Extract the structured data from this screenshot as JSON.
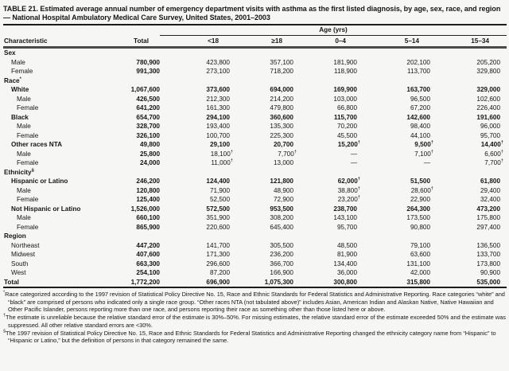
{
  "title": "TABLE 21. Estimated average annual number of emergency department visits with asthma as the first listed diagnosis, by age, sex, race, and region — National Hospital Ambulatory Medical Care Survey, United States, 2001–2003",
  "table": {
    "age_spanner": "Age (yrs)",
    "columns": [
      "Characteristic",
      "Total",
      "<18",
      "≥18",
      "0–4",
      "5–14",
      "15–34"
    ],
    "rows": [
      {
        "label": "Sex",
        "indent": 0,
        "section": true,
        "bold": false,
        "values": []
      },
      {
        "label": "Male",
        "indent": 1,
        "section": false,
        "bold": false,
        "values": [
          "780,900",
          "423,800",
          "357,100",
          "181,900",
          "202,100",
          "205,200"
        ]
      },
      {
        "label": "Female",
        "indent": 1,
        "section": false,
        "bold": false,
        "values": [
          "991,300",
          "273,100",
          "718,200",
          "118,900",
          "113,700",
          "329,800"
        ]
      },
      {
        "label": "Race*",
        "indent": 0,
        "section": true,
        "bold": false,
        "values": []
      },
      {
        "label": "White",
        "indent": 1,
        "section": false,
        "bold": true,
        "values": [
          "1,067,600",
          "373,600",
          "694,000",
          "169,900",
          "163,700",
          "329,000"
        ]
      },
      {
        "label": "Male",
        "indent": 2,
        "section": false,
        "bold": false,
        "values": [
          "426,500",
          "212,300",
          "214,200",
          "103,000",
          "96,500",
          "102,600"
        ]
      },
      {
        "label": "Female",
        "indent": 2,
        "section": false,
        "bold": false,
        "values": [
          "641,200",
          "161,300",
          "479,800",
          "66,800",
          "67,200",
          "226,400"
        ]
      },
      {
        "label": "Black",
        "indent": 1,
        "section": false,
        "bold": true,
        "values": [
          "654,700",
          "294,100",
          "360,600",
          "115,700",
          "142,600",
          "191,600"
        ]
      },
      {
        "label": "Male",
        "indent": 2,
        "section": false,
        "bold": false,
        "values": [
          "328,700",
          "193,400",
          "135,300",
          "70,200",
          "98,400",
          "96,000"
        ]
      },
      {
        "label": "Female",
        "indent": 2,
        "section": false,
        "bold": false,
        "values": [
          "326,100",
          "100,700",
          "225,300",
          "45,500",
          "44,100",
          "95,700"
        ]
      },
      {
        "label": "Other races NTA",
        "indent": 1,
        "section": false,
        "bold": true,
        "values": [
          "49,800",
          "29,100",
          "20,700",
          "15,200†",
          "9,500†",
          "14,400†"
        ]
      },
      {
        "label": "Male",
        "indent": 2,
        "section": false,
        "bold": false,
        "values": [
          "25,800",
          "18,100†",
          "7,700†",
          "—",
          "7,100†",
          "6,600†"
        ]
      },
      {
        "label": "Female",
        "indent": 2,
        "section": false,
        "bold": false,
        "values": [
          "24,000",
          "11,000†",
          "13,000",
          "—",
          "—",
          "7,700†"
        ]
      },
      {
        "label": "Ethnicity§",
        "indent": 0,
        "section": true,
        "bold": false,
        "values": []
      },
      {
        "label": "Hispanic or Latino",
        "indent": 1,
        "section": false,
        "bold": true,
        "values": [
          "246,200",
          "124,400",
          "121,800",
          "62,000†",
          "51,500",
          "61,800"
        ]
      },
      {
        "label": "Male",
        "indent": 2,
        "section": false,
        "bold": false,
        "values": [
          "120,800",
          "71,900",
          "48,900",
          "38,800†",
          "28,600†",
          "29,400"
        ]
      },
      {
        "label": "Female",
        "indent": 2,
        "section": false,
        "bold": false,
        "values": [
          "125,400",
          "52,500",
          "72,900",
          "23,200†",
          "22,900",
          "32,400"
        ]
      },
      {
        "label": "Not Hispanic or Latino",
        "indent": 1,
        "section": false,
        "bold": true,
        "values": [
          "1,526,000",
          "572,500",
          "953,500",
          "238,700",
          "264,300",
          "473,200"
        ]
      },
      {
        "label": "Male",
        "indent": 2,
        "section": false,
        "bold": false,
        "values": [
          "660,100",
          "351,900",
          "308,200",
          "143,100",
          "173,500",
          "175,800"
        ]
      },
      {
        "label": "Female",
        "indent": 2,
        "section": false,
        "bold": false,
        "values": [
          "865,900",
          "220,600",
          "645,400",
          "95,700",
          "90,800",
          "297,400"
        ]
      },
      {
        "label": "Region",
        "indent": 0,
        "section": true,
        "bold": false,
        "values": []
      },
      {
        "label": "Northeast",
        "indent": 1,
        "section": false,
        "bold": false,
        "values": [
          "447,200",
          "141,700",
          "305,500",
          "48,500",
          "79,100",
          "136,500"
        ]
      },
      {
        "label": "Midwest",
        "indent": 1,
        "section": false,
        "bold": false,
        "values": [
          "407,600",
          "171,300",
          "236,200",
          "81,900",
          "63,600",
          "133,700"
        ]
      },
      {
        "label": "South",
        "indent": 1,
        "section": false,
        "bold": false,
        "values": [
          "663,300",
          "296,600",
          "366,700",
          "134,400",
          "131,100",
          "173,800"
        ]
      },
      {
        "label": "West",
        "indent": 1,
        "section": false,
        "bold": false,
        "values": [
          "254,100",
          "87,200",
          "166,900",
          "36,000",
          "42,000",
          "90,900"
        ]
      },
      {
        "label": "Total",
        "indent": 0,
        "section": true,
        "bold": true,
        "values": [
          "1,772,200",
          "696,900",
          "1,075,300",
          "300,800",
          "315,800",
          "535,000"
        ]
      }
    ]
  },
  "footnotes": [
    {
      "marker": "*",
      "text": "Race categorized according to the 1997 revision of Statistical Policy Directive No. 15, Race and Ethnic Standards for Federal Statistics and Administrative Reporting. Race categories “white” and “black” are comprised of persons who indicated only a single race group. “Other races NTA (not tabulated above)” includes Asian, American Indian and Alaskan Native, Native Hawaiian and Other Pacific Islander, persons reporting more than one race, and persons reporting their race as something other than those listed here or above."
    },
    {
      "marker": "†",
      "text": "The estimate is unreliable because the relative standard error of the estimate is 30%–50%. For missing estimates, the relative standard error of the estimate exceeded 50% and the estimate was suppressed. All other relative standard errors are <30%."
    },
    {
      "marker": "§",
      "text": "The 1997 revision of Statistical Policy Directive No. 15, Race and Ethnic Standards for Federal Statistics and Administrative Reporting changed the ethnicity category name from “Hispanic” to “Hispanic or Latino,” but the definition of persons in that category remained the same."
    }
  ]
}
